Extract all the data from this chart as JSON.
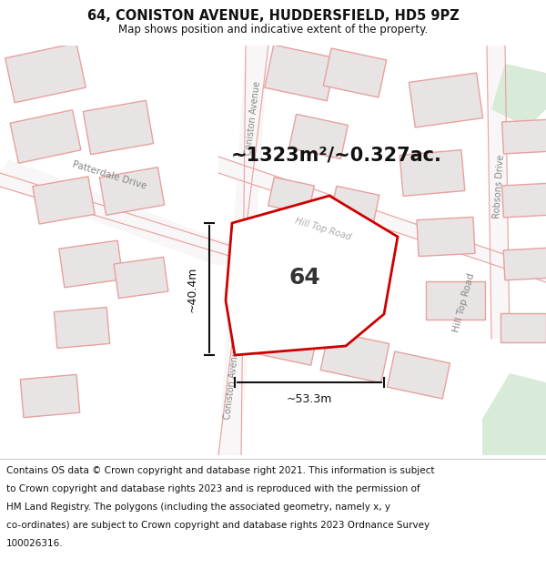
{
  "title": "64, CONISTON AVENUE, HUDDERSFIELD, HD5 9PZ",
  "subtitle": "Map shows position and indicative extent of the property.",
  "area_text": "~1323m²/~0.327ac.",
  "label_64": "64",
  "dim_width": "~53.3m",
  "dim_height": "~40.4m",
  "footer_lines": [
    "Contains OS data © Crown copyright and database right 2021. This information is subject",
    "to Crown copyright and database rights 2023 and is reproduced with the permission of",
    "HM Land Registry. The polygons (including the associated geometry, namely x, y",
    "co-ordinates) are subject to Crown copyright and database rights 2023 Ordnance Survey",
    "100026316."
  ],
  "map_bg": "#f0eeee",
  "building_fill": "#e8e4e4",
  "building_edge": "#e8a0a0",
  "highlight_fill": "#ffffff",
  "highlight_edge": "#cc0000",
  "road_fill": "#f8f6f6",
  "road_edge": "#e8a0a0",
  "green_fill": "#d8ead8",
  "title_fontsize": 10.5,
  "subtitle_fontsize": 8.5,
  "footer_fontsize": 7.5,
  "area_fontsize": 15,
  "label_fontsize": 18,
  "dim_fontsize": 9
}
